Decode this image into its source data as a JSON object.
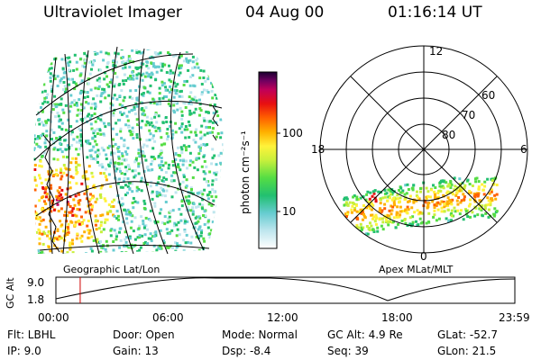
{
  "header": {
    "title": "Ultraviolet Imager",
    "date": "04 Aug 00",
    "time": "01:16:14 UT"
  },
  "colorbar": {
    "unit_label": "photon cm⁻²s⁻¹",
    "ticks": [
      "100",
      "10"
    ],
    "scale": "log",
    "colors": [
      "#ffffff",
      "#bfe6ee",
      "#66ccd0",
      "#22c070",
      "#55dd44",
      "#c8f03c",
      "#fff23a",
      "#ffb000",
      "#ff6000",
      "#e81010",
      "#c0005a",
      "#700060",
      "#1a0030"
    ]
  },
  "polar_plot": {
    "mlt_labels": [
      "12",
      "18",
      "6",
      "0"
    ],
    "mlat_labels": [
      "60",
      "70",
      "80"
    ]
  },
  "labels": {
    "geographic": "Geographic Lat/Lon",
    "apex": "Apex MLat/MLT"
  },
  "altitude_plot": {
    "axis_label": "GC Alt",
    "y_ticks": [
      "9.0",
      "1.8"
    ],
    "x_ticks": [
      "00:00",
      "06:00",
      "12:00",
      "18:00",
      "23:59"
    ],
    "current_time_hours": 1.27
  },
  "info": {
    "flt": "Flt: LBHL",
    "door": "Door: Open",
    "mode": "Mode: Normal",
    "gc_alt": "GC Alt: 4.9 Re",
    "glat": "GLat: -52.7",
    "ip": "IP: 9.0",
    "gain": "Gain: 13",
    "dsp": "Dsp:  -8.4",
    "seq": "Seq: 39",
    "glon": "GLon: 21.5"
  }
}
